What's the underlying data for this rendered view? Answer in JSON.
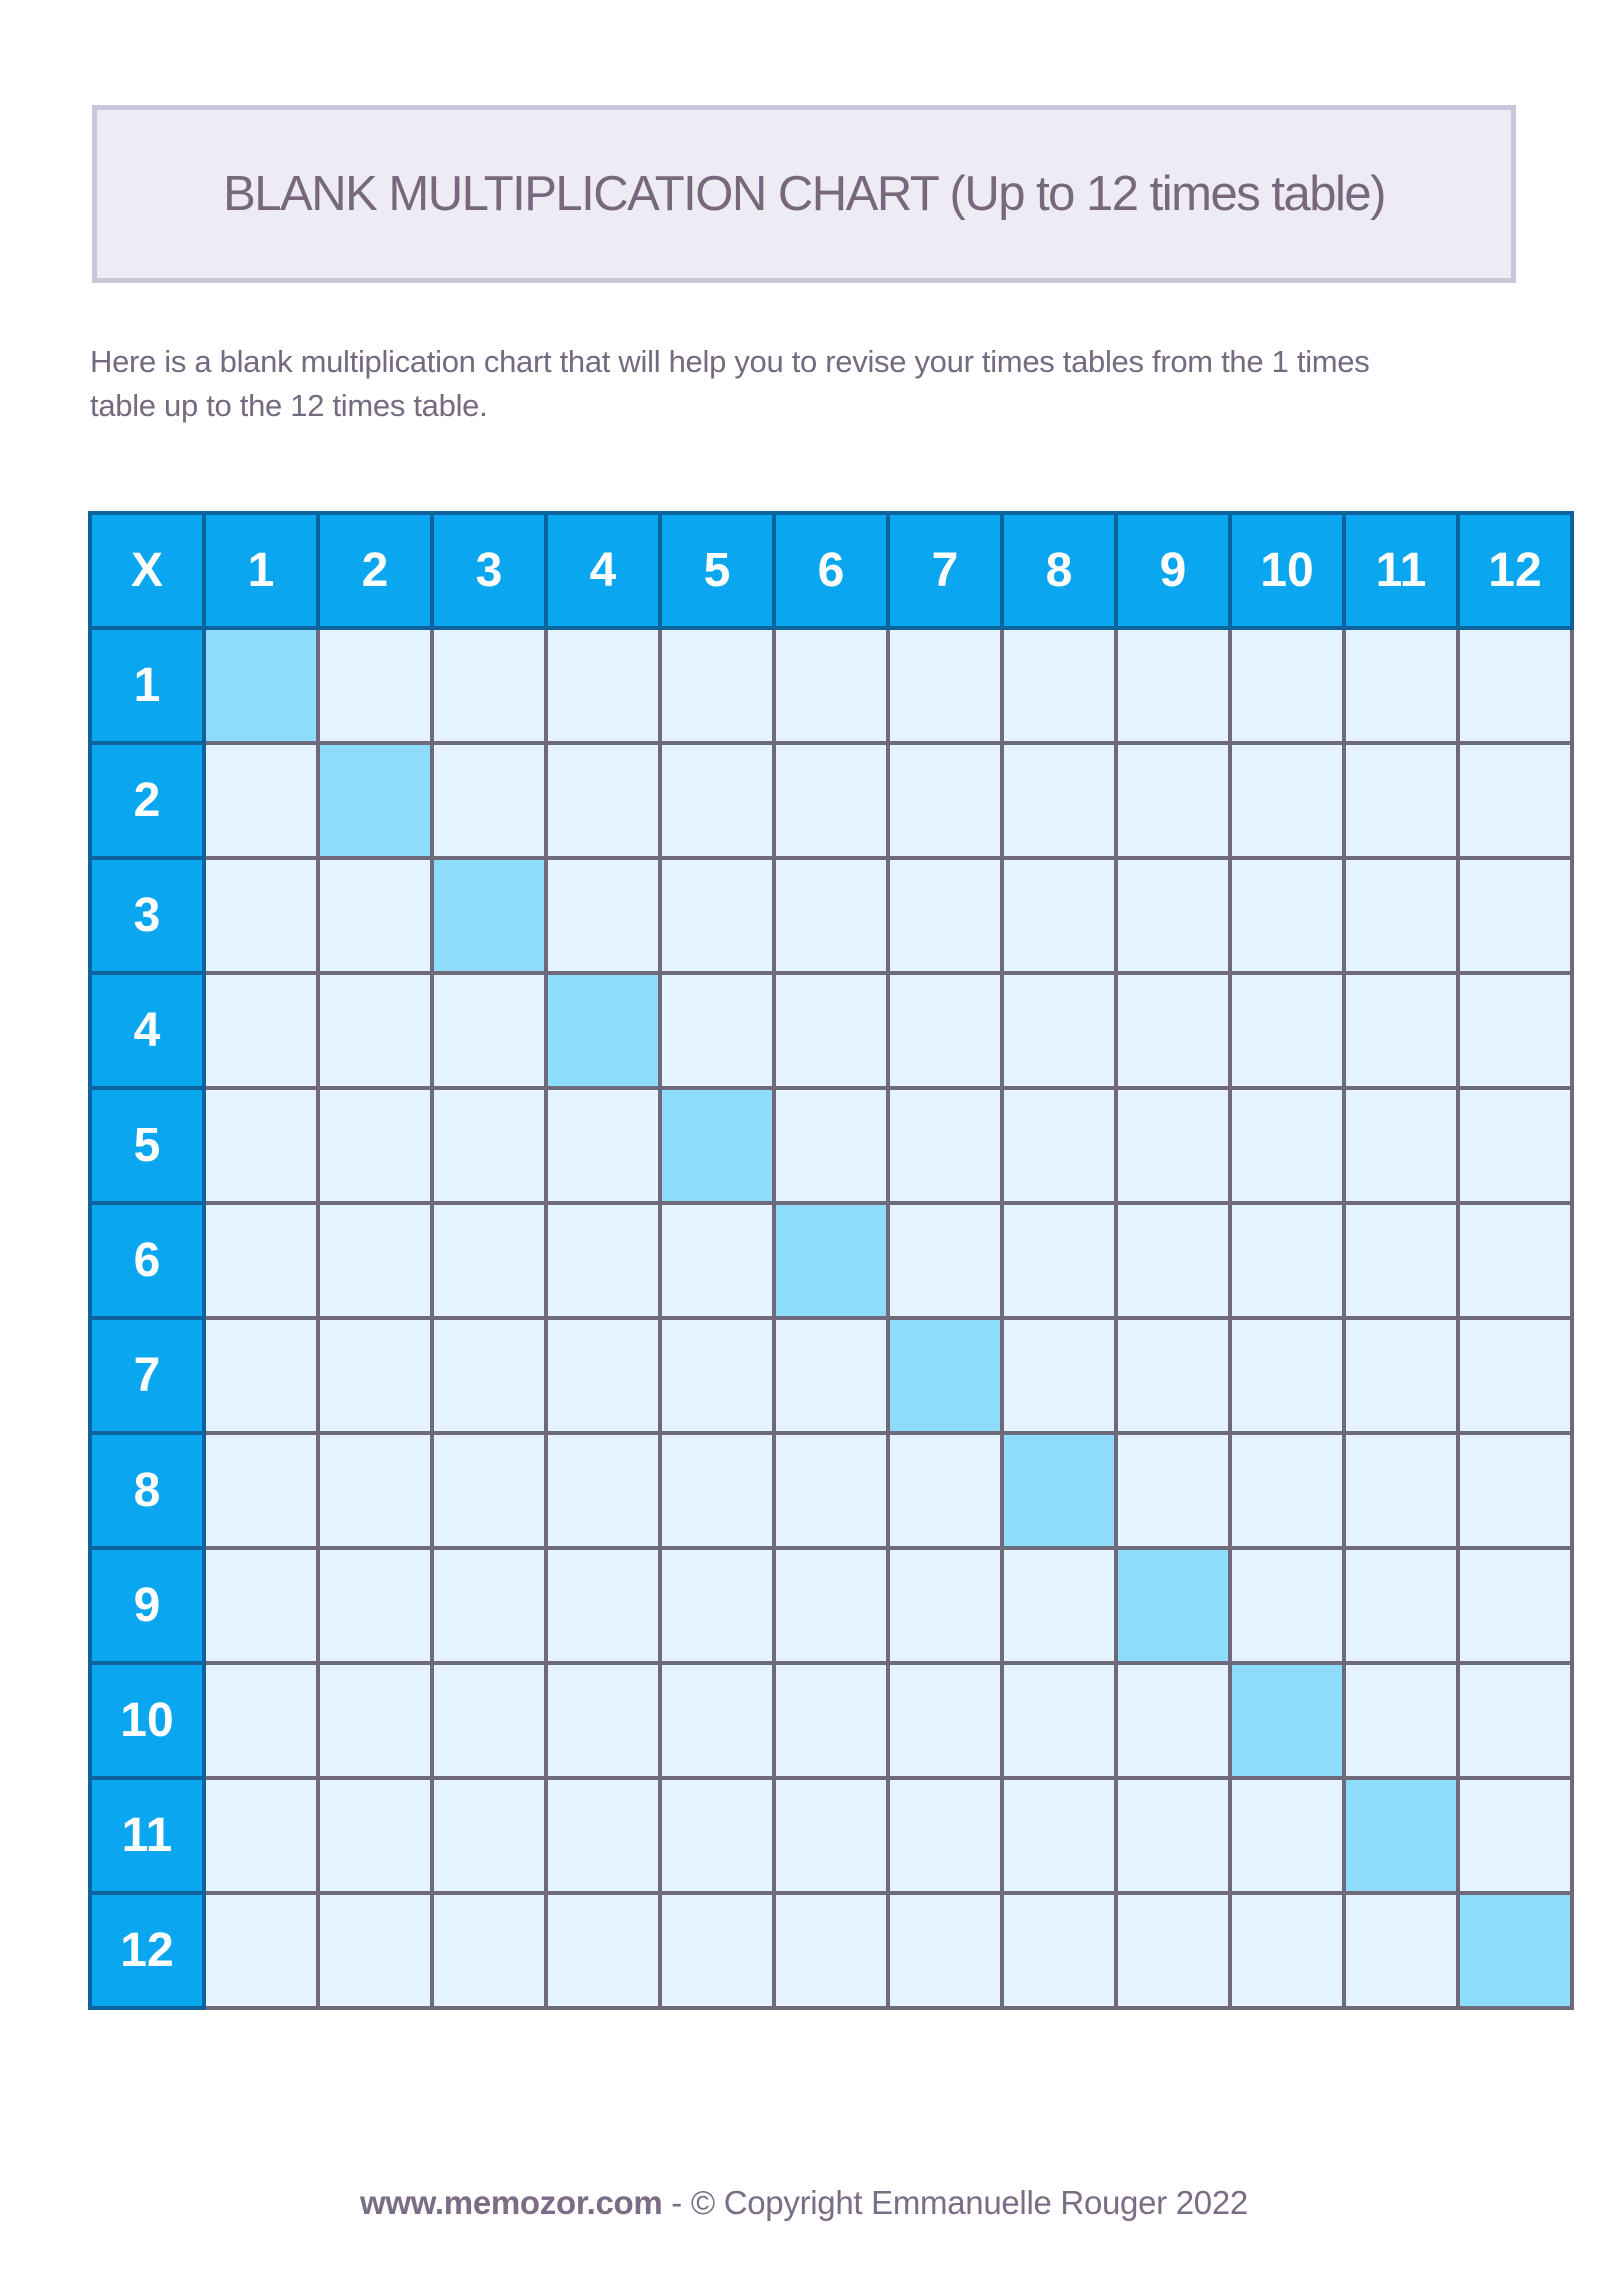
{
  "title_banner": {
    "text": "BLANK MULTIPLICATION CHART (Up to 12 times table)",
    "bg_color": "#edecf5",
    "border_color": "#c8c6d8",
    "text_color": "#77687e"
  },
  "intro": {
    "text": "Here is a blank multiplication chart that will help you to revise your times tables from the 1 times\ntable up to the 12 times table."
  },
  "table": {
    "corner_label": "X",
    "column_headers": [
      "1",
      "2",
      "3",
      "4",
      "5",
      "6",
      "7",
      "8",
      "9",
      "10",
      "11",
      "12"
    ],
    "row_headers": [
      "1",
      "2",
      "3",
      "4",
      "5",
      "6",
      "7",
      "8",
      "9",
      "10",
      "11",
      "12"
    ],
    "cell_value": "",
    "highlight_rule": "diagonal cells where row number equals column number",
    "colors": {
      "header_bg": "#0aa7f0",
      "header_border": "#0e639c",
      "header_text": "#ffffff",
      "cell_bg": "#e4f3fc",
      "diagonal_bg": "#8edcfa",
      "grid_line": "#6f697c"
    }
  },
  "footer": {
    "site": "www.memozor.com",
    "separator": " - ",
    "copyright": "© Copyright Emmanuelle Rouger 2022"
  }
}
